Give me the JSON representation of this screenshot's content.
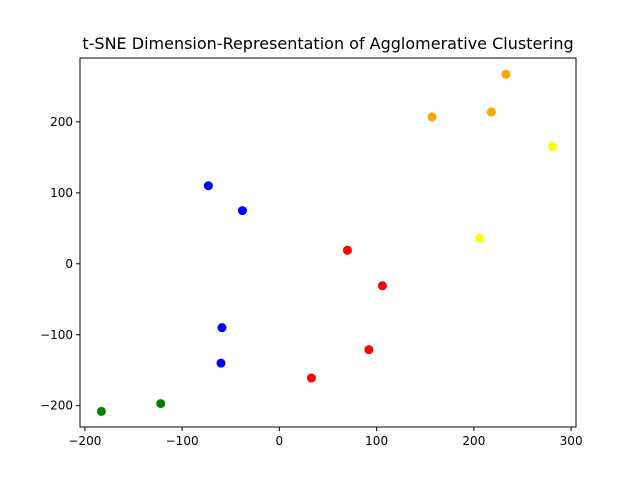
{
  "chart_data": {
    "type": "scatter",
    "title": "t-SNE Dimension-Representation of Agglomerative Clustering",
    "xlabel": "",
    "ylabel": "",
    "xlim": [
      -205,
      305
    ],
    "ylim": [
      -230,
      290
    ],
    "xticks": [
      -200,
      -100,
      0,
      100,
      200,
      300
    ],
    "xtick_labels": [
      "−200",
      "−100",
      "0",
      "100",
      "200",
      "300"
    ],
    "yticks": [
      -200,
      -100,
      0,
      100,
      200
    ],
    "ytick_labels": [
      "−200",
      "−100",
      "0",
      "100",
      "200"
    ],
    "grid": false,
    "series": [
      {
        "color": "#0000ff",
        "points": [
          {
            "x": -73,
            "y": 110
          },
          {
            "x": -38,
            "y": 75
          },
          {
            "x": -59,
            "y": -90
          },
          {
            "x": -60,
            "y": -140
          }
        ]
      },
      {
        "color": "#ff0000",
        "points": [
          {
            "x": 70,
            "y": 19
          },
          {
            "x": 106,
            "y": -31
          },
          {
            "x": 92,
            "y": -121
          },
          {
            "x": 33,
            "y": -161
          }
        ]
      },
      {
        "color": "#ffa500",
        "points": [
          {
            "x": 157,
            "y": 207
          },
          {
            "x": 218,
            "y": 214
          },
          {
            "x": 233,
            "y": 267
          }
        ]
      },
      {
        "color": "#ffff00",
        "points": [
          {
            "x": 281,
            "y": 165
          },
          {
            "x": 206,
            "y": 36
          }
        ]
      },
      {
        "color": "#008000",
        "points": [
          {
            "x": -183,
            "y": -208
          },
          {
            "x": -122,
            "y": -197
          }
        ]
      }
    ]
  }
}
